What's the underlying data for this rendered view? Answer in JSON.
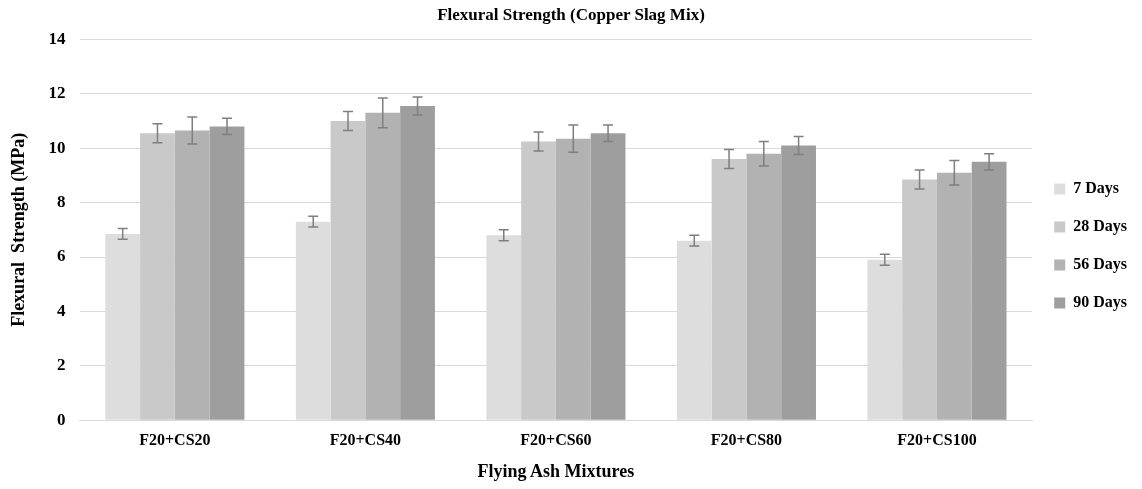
{
  "chart_data": {
    "type": "bar",
    "title": "Flexural Strength (Copper Slag Mix)",
    "xlabel": "Flying Ash Mixtures",
    "ylabel": "Flexural  Strength (MPa)",
    "categories": [
      "F20+CS20",
      "F20+CS40",
      "F20+CS60",
      "F20+CS80",
      "F20+CS100"
    ],
    "series": [
      {
        "name": "7 Days",
        "color": "#dcdddc",
        "values": [
          6.85,
          7.3,
          6.8,
          6.6,
          5.9
        ],
        "errors": [
          0.2,
          0.2,
          0.2,
          0.2,
          0.2
        ]
      },
      {
        "name": "28 Days",
        "color": "#c8c9c8",
        "values": [
          10.55,
          11.0,
          10.25,
          9.6,
          8.85
        ],
        "errors": [
          0.35,
          0.35,
          0.35,
          0.35,
          0.35
        ]
      },
      {
        "name": "56 Days",
        "color": "#b1b2b1",
        "values": [
          10.65,
          11.3,
          10.35,
          9.8,
          9.1
        ],
        "errors": [
          0.5,
          0.55,
          0.5,
          0.45,
          0.45
        ]
      },
      {
        "name": "90 Days",
        "color": "#9d9e9d",
        "values": [
          10.8,
          11.55,
          10.55,
          10.1,
          9.5
        ],
        "errors": [
          0.3,
          0.33,
          0.3,
          0.33,
          0.3
        ]
      }
    ],
    "ylim": [
      0,
      14
    ],
    "yticks": [
      0,
      2,
      4,
      6,
      8,
      10,
      12,
      14
    ],
    "grid": "y",
    "legend": "right"
  }
}
